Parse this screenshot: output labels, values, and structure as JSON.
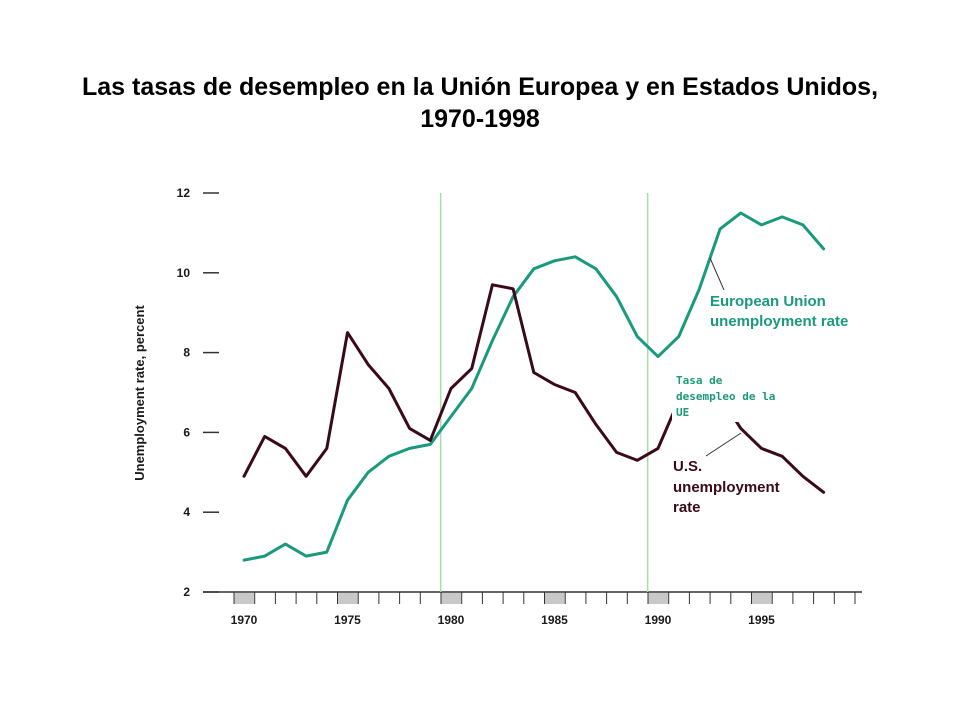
{
  "title_line1": "Las tasas de desempleo en la Unión Europea y en Estados Unidos,",
  "title_line2": "1970-1998",
  "chart_data": {
    "type": "line",
    "ylabel": "Unemployment rate, percent",
    "xlabel": "",
    "ylim": [
      2,
      12
    ],
    "xlim": [
      1970,
      1998
    ],
    "yticks": [
      2,
      4,
      6,
      8,
      10,
      12
    ],
    "xticks": [
      1970,
      1975,
      1980,
      1985,
      1990,
      1995
    ],
    "reference_lines_x": [
      1979.5,
      1989.5
    ],
    "shaded_years": [
      1970,
      1975,
      1980,
      1985,
      1990,
      1995
    ],
    "grid": false,
    "series": [
      {
        "name": "European Union unemployment rate",
        "color": "#1a9a7c",
        "x": [
          1970,
          1971,
          1972,
          1973,
          1974,
          1975,
          1976,
          1977,
          1978,
          1979,
          1980,
          1981,
          1982,
          1983,
          1984,
          1985,
          1986,
          1987,
          1988,
          1989,
          1990,
          1991,
          1992,
          1993,
          1994,
          1995,
          1996,
          1997,
          1998
        ],
        "y": [
          2.8,
          2.9,
          3.2,
          2.9,
          3.0,
          4.3,
          5.0,
          5.4,
          5.6,
          5.7,
          6.4,
          7.1,
          8.3,
          9.4,
          10.1,
          10.3,
          10.4,
          10.1,
          9.4,
          8.4,
          7.9,
          8.4,
          9.6,
          11.1,
          11.5,
          11.2,
          11.4,
          11.2,
          10.6
        ]
      },
      {
        "name": "U.S. unemployment rate",
        "color": "#3a0a1a",
        "x": [
          1970,
          1971,
          1972,
          1973,
          1974,
          1975,
          1976,
          1977,
          1978,
          1979,
          1980,
          1981,
          1982,
          1983,
          1984,
          1985,
          1986,
          1987,
          1988,
          1989,
          1990,
          1991,
          1992,
          1993,
          1994,
          1995,
          1996,
          1997,
          1998
        ],
        "y": [
          4.9,
          5.9,
          5.6,
          4.9,
          5.6,
          8.5,
          7.7,
          7.1,
          6.1,
          5.8,
          7.1,
          7.6,
          9.7,
          9.6,
          7.5,
          7.2,
          7.0,
          6.2,
          5.5,
          5.3,
          5.6,
          6.8,
          7.5,
          6.9,
          6.1,
          5.6,
          5.4,
          4.9,
          4.5
        ]
      }
    ],
    "labels": {
      "eu_line1": "European Union",
      "eu_line2": "unemployment rate",
      "us_line1": "U.S.",
      "us_line2": "unemployment",
      "us_line3": "rate"
    },
    "annotation": {
      "line1": "Tasa de",
      "line2": "desempleo de la",
      "line3": "UE"
    }
  }
}
